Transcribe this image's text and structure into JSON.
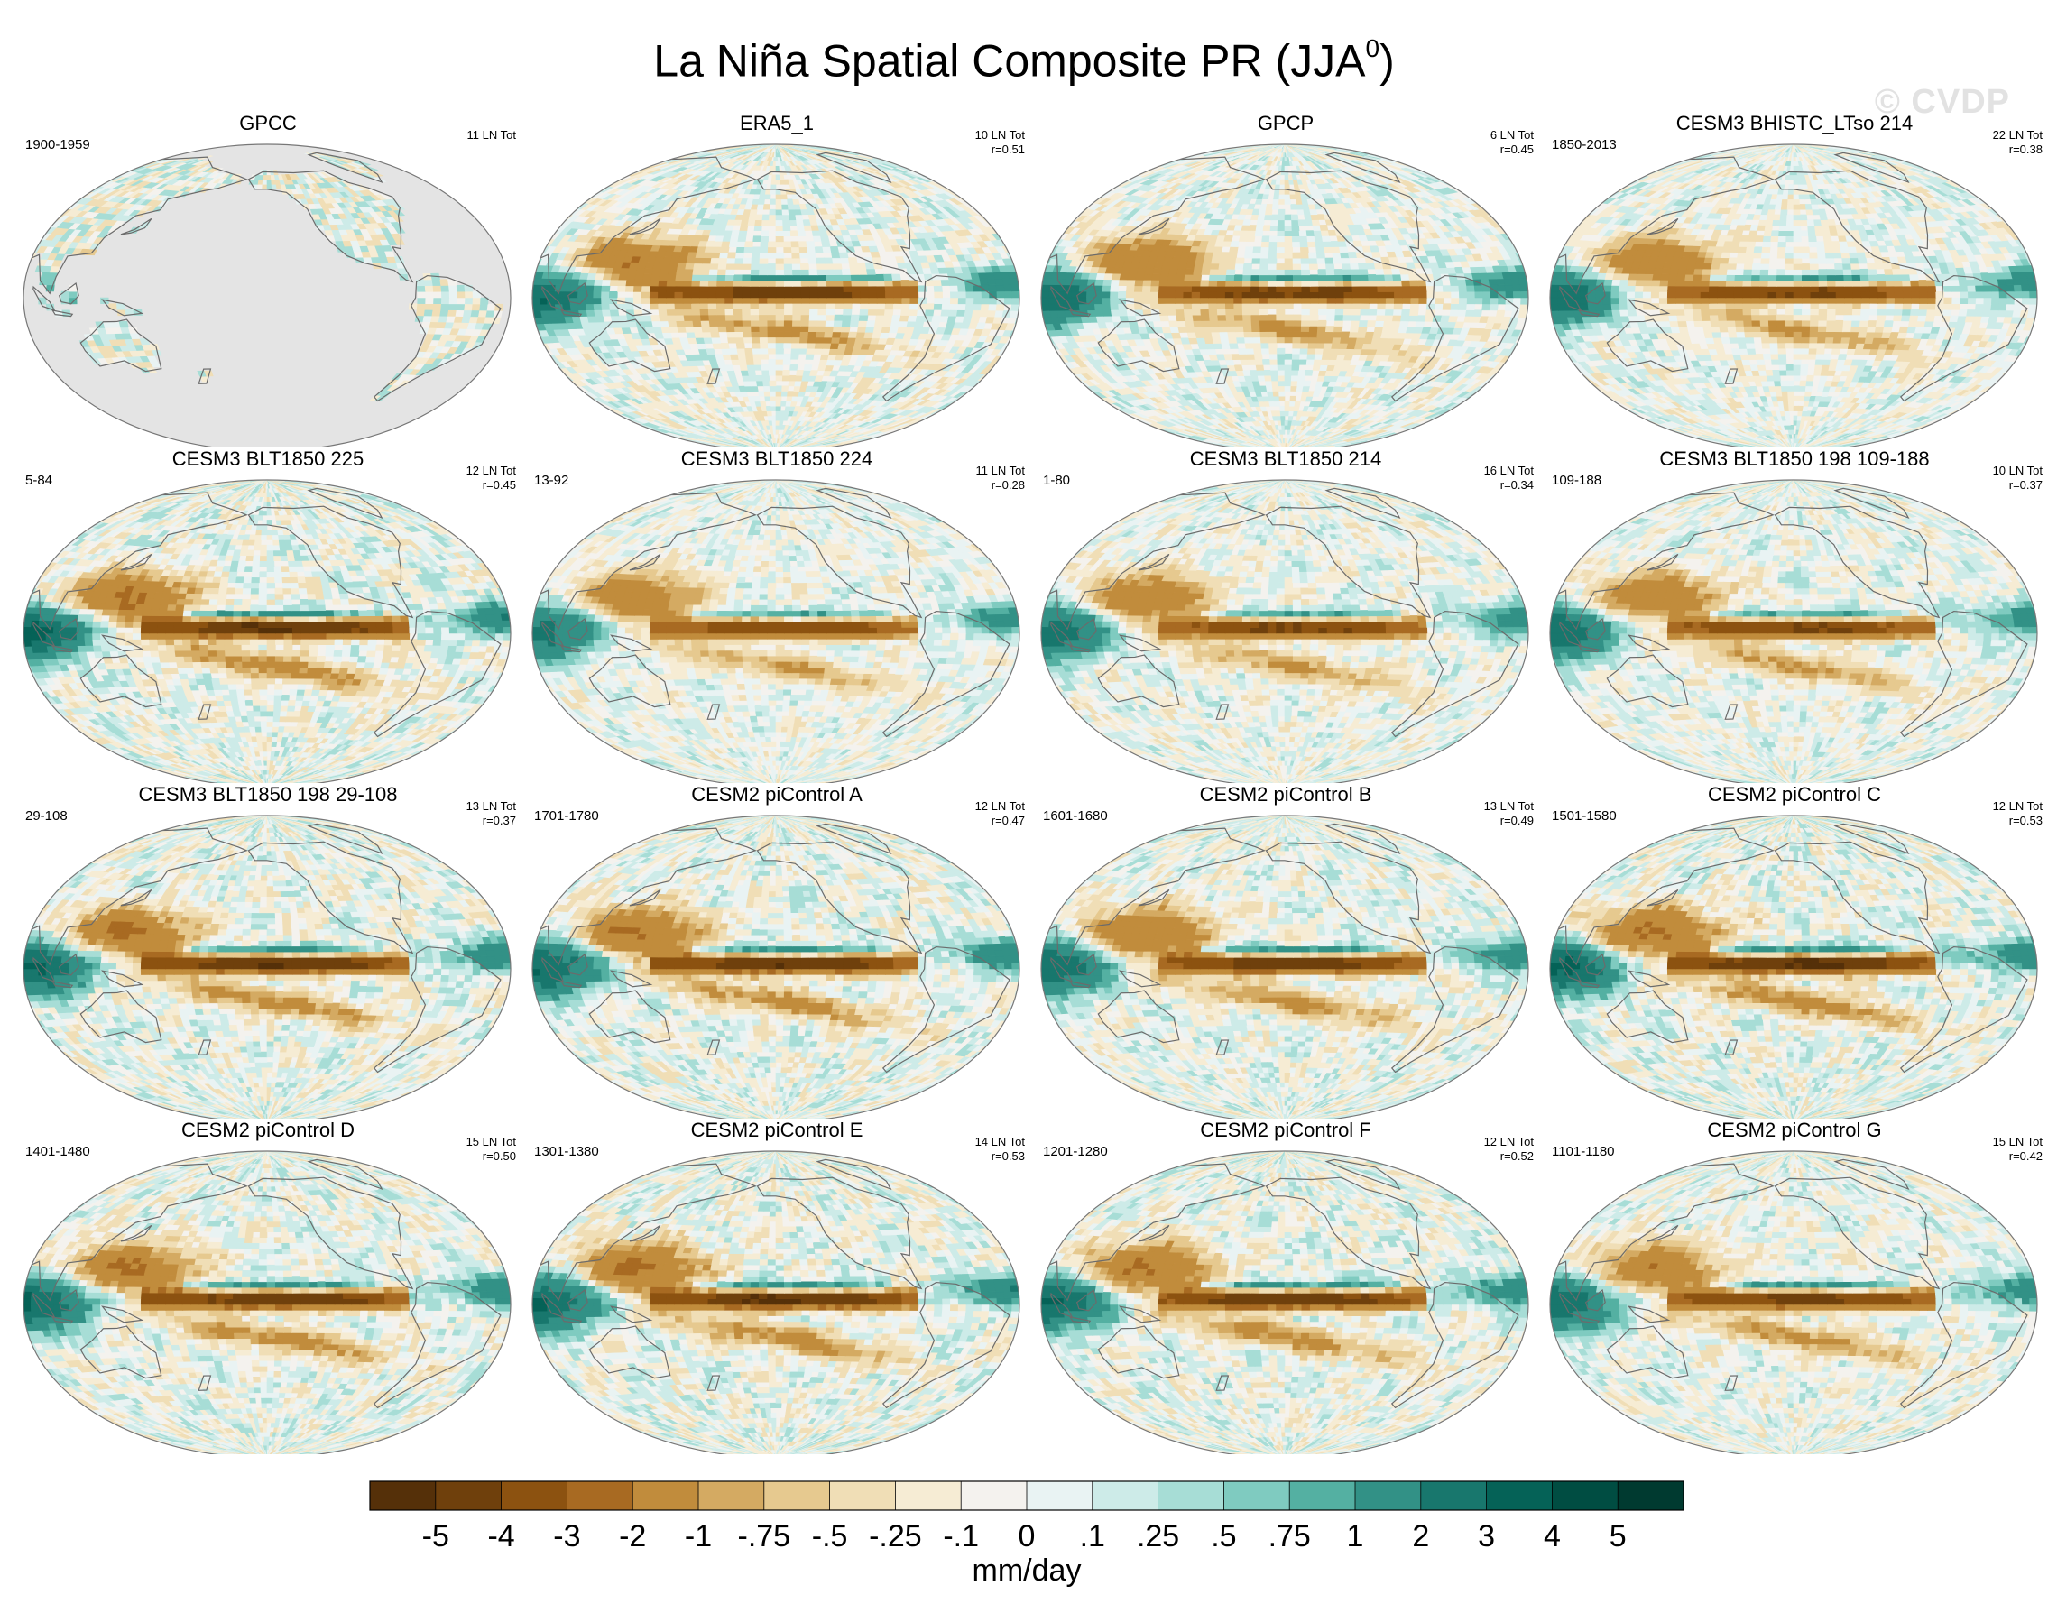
{
  "title": "La Niña Spatial Composite PR (JJA",
  "title_sup": "0",
  "title_close": ")",
  "watermark": "© CVDP",
  "chart_data": {
    "type": "heatmap",
    "variable": "PR",
    "season": "JJA",
    "panels": [
      {
        "name": "GPCC",
        "years": "1900-1959",
        "events": "11 LN Tot",
        "r": "",
        "land_only": true,
        "amp": 0.35,
        "eq_shift": 0,
        "seed": 1
      },
      {
        "name": "ERA5_1",
        "years": "",
        "events": "10 LN Tot",
        "r": "r=0.51",
        "land_only": false,
        "amp": 0.9,
        "eq_shift": 0,
        "seed": 2
      },
      {
        "name": "GPCP",
        "years": "",
        "events": "6 LN Tot",
        "r": "r=0.45",
        "land_only": false,
        "amp": 0.85,
        "eq_shift": 0,
        "seed": 3
      },
      {
        "name": "CESM3 BHISTC_LTso 214",
        "years": "1850-2013",
        "events": "22 LN Tot",
        "r": "r=0.38",
        "land_only": false,
        "amp": 0.8,
        "eq_shift": 0,
        "seed": 4
      },
      {
        "name": "CESM3 BLT1850 225",
        "years": "5-84",
        "events": "12 LN Tot",
        "r": "r=0.45",
        "land_only": false,
        "amp": 1.0,
        "eq_shift": 0,
        "seed": 5
      },
      {
        "name": "CESM3 BLT1850 224",
        "years": "13-92",
        "events": "11 LN Tot",
        "r": "r=0.28",
        "land_only": false,
        "amp": 0.75,
        "eq_shift": 0,
        "seed": 6
      },
      {
        "name": "CESM3 BLT1850 214",
        "years": "1-80",
        "events": "16 LN Tot",
        "r": "r=0.34",
        "land_only": false,
        "amp": 0.8,
        "eq_shift": 0,
        "seed": 7
      },
      {
        "name": "CESM3 BLT1850 198 109-188",
        "years": "109-188",
        "events": "10 LN Tot",
        "r": "r=0.37",
        "land_only": false,
        "amp": 0.8,
        "eq_shift": 0,
        "seed": 8
      },
      {
        "name": "CESM3 BLT1850 198 29-108",
        "years": "29-108",
        "events": "13 LN Tot",
        "r": "r=0.37",
        "land_only": false,
        "amp": 0.95,
        "eq_shift": 0,
        "seed": 9
      },
      {
        "name": "CESM2 piControl A",
        "years": "1701-1780",
        "events": "12 LN Tot",
        "r": "r=0.47",
        "land_only": false,
        "amp": 0.95,
        "eq_shift": 0,
        "seed": 10
      },
      {
        "name": "CESM2 piControl B",
        "years": "1601-1680",
        "events": "13 LN Tot",
        "r": "r=0.49",
        "land_only": false,
        "amp": 0.9,
        "eq_shift": 0,
        "seed": 11
      },
      {
        "name": "CESM2 piControl C",
        "years": "1501-1580",
        "events": "12 LN Tot",
        "r": "r=0.53",
        "land_only": false,
        "amp": 1.0,
        "eq_shift": 0,
        "seed": 12
      },
      {
        "name": "CESM2 piControl D",
        "years": "1401-1480",
        "events": "15 LN Tot",
        "r": "r=0.50",
        "land_only": false,
        "amp": 0.95,
        "eq_shift": 0,
        "seed": 13
      },
      {
        "name": "CESM2 piControl E",
        "years": "1301-1380",
        "events": "14 LN Tot",
        "r": "r=0.53",
        "land_only": false,
        "amp": 1.0,
        "eq_shift": 0,
        "seed": 14
      },
      {
        "name": "CESM2 piControl F",
        "years": "1201-1280",
        "events": "12 LN Tot",
        "r": "r=0.52",
        "land_only": false,
        "amp": 0.95,
        "eq_shift": 0,
        "seed": 15
      },
      {
        "name": "CESM2 piControl G",
        "years": "1101-1180",
        "events": "15 LN Tot",
        "r": "r=0.42",
        "land_only": false,
        "amp": 0.85,
        "eq_shift": 0,
        "seed": 16
      }
    ],
    "colorbar": {
      "labels": [
        "-5",
        "-4",
        "-3",
        "-2",
        "-1",
        "-.75",
        "-.5",
        "-.25",
        "-.1",
        "0",
        ".1",
        ".25",
        ".5",
        ".75",
        "1",
        "2",
        "3",
        "4",
        "5"
      ],
      "levels": [
        -5,
        -4,
        -3,
        -2,
        -1,
        -0.75,
        -0.5,
        -0.25,
        -0.1,
        0,
        0.1,
        0.25,
        0.5,
        0.75,
        1,
        2,
        3,
        4,
        5
      ],
      "colors": [
        "#553009",
        "#6f400c",
        "#8c5210",
        "#a86a22",
        "#c18c3c",
        "#d4aa62",
        "#e6c98f",
        "#f0deb6",
        "#f6ecd4",
        "#f4f2ee",
        "#e9f3f3",
        "#cdebe8",
        "#a7ddd6",
        "#7fcbc0",
        "#54b0a2",
        "#329186",
        "#18776d",
        "#056257",
        "#004d42",
        "#003a30"
      ],
      "units": "mm/day"
    }
  }
}
